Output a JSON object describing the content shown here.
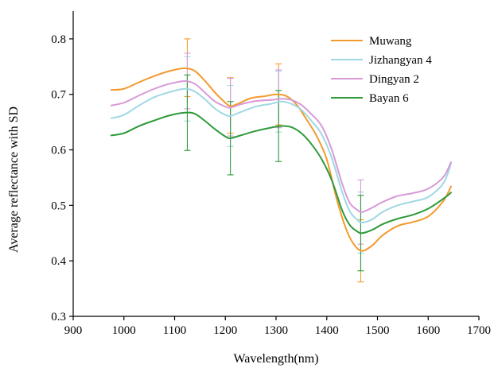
{
  "chart_data": {
    "type": "line",
    "title": "",
    "xlabel": "Wavelength(nm)",
    "ylabel": "Average reflectance with SD",
    "xlim": [
      900,
      1700
    ],
    "ylim": [
      0.3,
      0.85
    ],
    "xticks": [
      900,
      1000,
      1100,
      1200,
      1300,
      1400,
      1500,
      1600,
      1700
    ],
    "yticks": [
      0.3,
      0.4,
      0.5,
      0.6,
      0.7,
      0.8
    ],
    "xtick_labels": [
      "900",
      "1000",
      "1100",
      "1200",
      "1300",
      "1400",
      "1500",
      "1600",
      "1700"
    ],
    "ytick_labels": [
      "0.3",
      "0.4",
      "0.5",
      "0.6",
      "0.7",
      "0.8"
    ],
    "grid": false,
    "legend_position": "top-right",
    "series": [
      {
        "name": "Muwang",
        "color": "#f39a2e",
        "points": [
          [
            975,
            0.708
          ],
          [
            1000,
            0.71
          ],
          [
            1030,
            0.722
          ],
          [
            1060,
            0.733
          ],
          [
            1090,
            0.742
          ],
          [
            1120,
            0.747
          ],
          [
            1140,
            0.742
          ],
          [
            1160,
            0.724
          ],
          [
            1180,
            0.703
          ],
          [
            1200,
            0.685
          ],
          [
            1210,
            0.679
          ],
          [
            1225,
            0.683
          ],
          [
            1250,
            0.693
          ],
          [
            1280,
            0.697
          ],
          [
            1300,
            0.7
          ],
          [
            1320,
            0.697
          ],
          [
            1340,
            0.682
          ],
          [
            1360,
            0.655
          ],
          [
            1380,
            0.625
          ],
          [
            1400,
            0.583
          ],
          [
            1420,
            0.51
          ],
          [
            1440,
            0.453
          ],
          [
            1455,
            0.428
          ],
          [
            1470,
            0.418
          ],
          [
            1490,
            0.428
          ],
          [
            1510,
            0.446
          ],
          [
            1540,
            0.463
          ],
          [
            1570,
            0.47
          ],
          [
            1600,
            0.48
          ],
          [
            1630,
            0.508
          ],
          [
            1645,
            0.534
          ]
        ],
        "errors": [
          {
            "x": 1125,
            "y": 0.748,
            "sd": 0.052
          },
          {
            "x": 1210,
            "y": 0.68,
            "sd": 0.05
          },
          {
            "x": 1305,
            "y": 0.7,
            "sd": 0.055
          },
          {
            "x": 1467,
            "y": 0.418,
            "sd": 0.056
          }
        ]
      },
      {
        "name": "Jizhangyan 4",
        "color": "#9fd8e4",
        "points": [
          [
            975,
            0.657
          ],
          [
            1000,
            0.663
          ],
          [
            1030,
            0.68
          ],
          [
            1060,
            0.695
          ],
          [
            1090,
            0.704
          ],
          [
            1120,
            0.71
          ],
          [
            1140,
            0.705
          ],
          [
            1160,
            0.691
          ],
          [
            1180,
            0.674
          ],
          [
            1200,
            0.663
          ],
          [
            1210,
            0.661
          ],
          [
            1230,
            0.668
          ],
          [
            1260,
            0.678
          ],
          [
            1290,
            0.683
          ],
          [
            1310,
            0.687
          ],
          [
            1330,
            0.683
          ],
          [
            1350,
            0.672
          ],
          [
            1370,
            0.652
          ],
          [
            1390,
            0.628
          ],
          [
            1410,
            0.585
          ],
          [
            1430,
            0.525
          ],
          [
            1445,
            0.49
          ],
          [
            1460,
            0.474
          ],
          [
            1470,
            0.469
          ],
          [
            1490,
            0.475
          ],
          [
            1510,
            0.488
          ],
          [
            1540,
            0.5
          ],
          [
            1570,
            0.507
          ],
          [
            1600,
            0.515
          ],
          [
            1630,
            0.54
          ],
          [
            1645,
            0.575
          ]
        ],
        "errors": [
          {
            "x": 1125,
            "y": 0.71,
            "sd": 0.058
          },
          {
            "x": 1210,
            "y": 0.661,
            "sd": 0.055
          },
          {
            "x": 1305,
            "y": 0.687,
            "sd": 0.055
          },
          {
            "x": 1467,
            "y": 0.469,
            "sd": 0.055
          }
        ]
      },
      {
        "name": "Dingyan 2",
        "color": "#d79ad7",
        "points": [
          [
            975,
            0.68
          ],
          [
            1000,
            0.685
          ],
          [
            1030,
            0.698
          ],
          [
            1060,
            0.71
          ],
          [
            1090,
            0.719
          ],
          [
            1120,
            0.724
          ],
          [
            1140,
            0.719
          ],
          [
            1160,
            0.703
          ],
          [
            1180,
            0.687
          ],
          [
            1200,
            0.678
          ],
          [
            1210,
            0.676
          ],
          [
            1230,
            0.682
          ],
          [
            1260,
            0.688
          ],
          [
            1290,
            0.69
          ],
          [
            1310,
            0.692
          ],
          [
            1330,
            0.69
          ],
          [
            1350,
            0.681
          ],
          [
            1370,
            0.664
          ],
          [
            1390,
            0.643
          ],
          [
            1410,
            0.6
          ],
          [
            1430,
            0.54
          ],
          [
            1445,
            0.505
          ],
          [
            1460,
            0.492
          ],
          [
            1470,
            0.488
          ],
          [
            1490,
            0.496
          ],
          [
            1510,
            0.506
          ],
          [
            1540,
            0.517
          ],
          [
            1570,
            0.522
          ],
          [
            1600,
            0.53
          ],
          [
            1630,
            0.551
          ],
          [
            1645,
            0.578
          ]
        ],
        "errors": [
          {
            "x": 1125,
            "y": 0.724,
            "sd": 0.05
          },
          {
            "x": 1210,
            "y": 0.677,
            "sd": 0.052
          },
          {
            "x": 1305,
            "y": 0.692,
            "sd": 0.052
          },
          {
            "x": 1467,
            "y": 0.488,
            "sd": 0.058
          }
        ]
      },
      {
        "name": "Bayan 6",
        "color": "#2e9a3a",
        "points": [
          [
            975,
            0.626
          ],
          [
            1000,
            0.63
          ],
          [
            1030,
            0.643
          ],
          [
            1060,
            0.653
          ],
          [
            1090,
            0.662
          ],
          [
            1120,
            0.667
          ],
          [
            1140,
            0.665
          ],
          [
            1160,
            0.652
          ],
          [
            1180,
            0.637
          ],
          [
            1200,
            0.624
          ],
          [
            1210,
            0.621
          ],
          [
            1230,
            0.626
          ],
          [
            1260,
            0.634
          ],
          [
            1290,
            0.64
          ],
          [
            1310,
            0.643
          ],
          [
            1330,
            0.641
          ],
          [
            1350,
            0.63
          ],
          [
            1370,
            0.61
          ],
          [
            1390,
            0.583
          ],
          [
            1410,
            0.545
          ],
          [
            1430,
            0.492
          ],
          [
            1445,
            0.465
          ],
          [
            1460,
            0.453
          ],
          [
            1470,
            0.45
          ],
          [
            1490,
            0.456
          ],
          [
            1510,
            0.466
          ],
          [
            1540,
            0.476
          ],
          [
            1570,
            0.483
          ],
          [
            1600,
            0.494
          ],
          [
            1630,
            0.512
          ],
          [
            1645,
            0.523
          ]
        ],
        "errors": [
          {
            "x": 1125,
            "y": 0.667,
            "sd": 0.068
          },
          {
            "x": 1210,
            "y": 0.621,
            "sd": 0.066
          },
          {
            "x": 1305,
            "y": 0.643,
            "sd": 0.064
          },
          {
            "x": 1467,
            "y": 0.45,
            "sd": 0.068
          }
        ]
      }
    ]
  }
}
